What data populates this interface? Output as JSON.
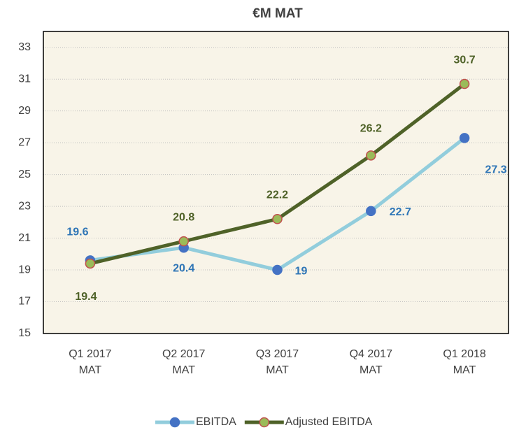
{
  "chart_data": {
    "type": "line",
    "title": "€M MAT",
    "categories": [
      "Q1 2017 MAT",
      "Q2 2017 MAT",
      "Q3 2017 MAT",
      "Q4 2017 MAT",
      "Q1 2018 MAT"
    ],
    "series": [
      {
        "name": "EBITDA",
        "color": "#92cddc",
        "marker_color": "#4472c4",
        "label_color": "#2e75b6",
        "values": [
          19.6,
          20.4,
          19,
          22.7,
          27.3
        ]
      },
      {
        "name": "Adjusted EBITDA",
        "color": "#4f6228",
        "marker_color": "#9bbb59",
        "marker_edge": "#c0504d",
        "label_color": "#4f6228",
        "values": [
          19.4,
          20.8,
          22.2,
          26.2,
          30.7
        ]
      }
    ],
    "ylim": [
      15,
      34
    ],
    "yticks": [
      15,
      17,
      19,
      21,
      23,
      25,
      27,
      29,
      31,
      33
    ],
    "grid": true,
    "legend": "bottom"
  }
}
